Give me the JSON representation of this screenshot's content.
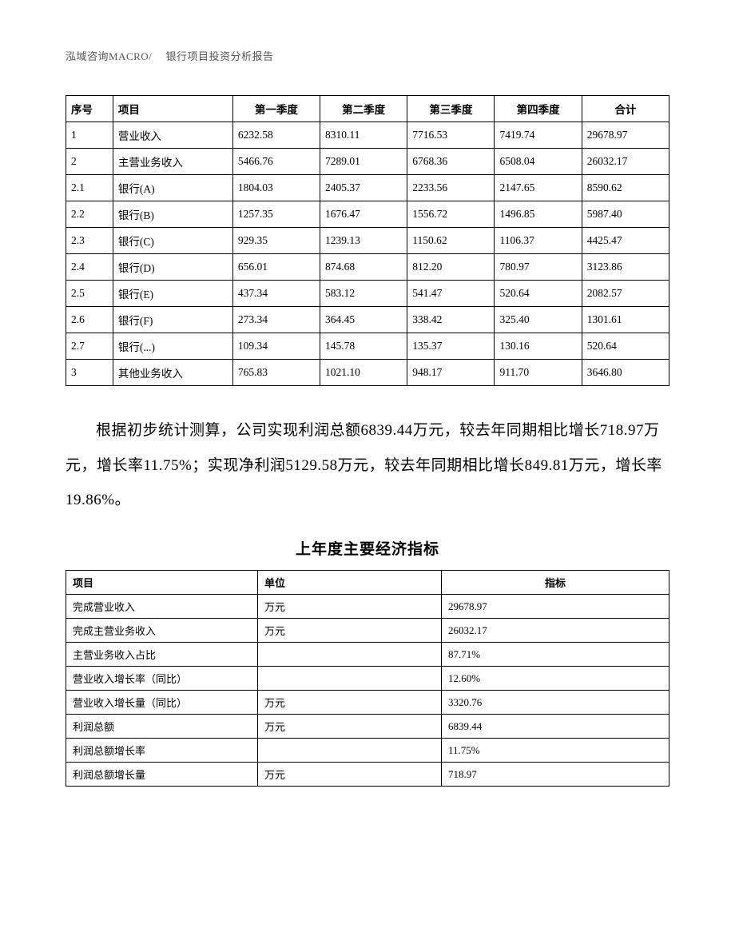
{
  "header": "泓域咨询MACRO/　 银行项目投资分析报告",
  "table1": {
    "headers": {
      "seq": "序号",
      "item": "项目",
      "q1": "第一季度",
      "q2": "第二季度",
      "q3": "第三季度",
      "q4": "第四季度",
      "total": "合计"
    },
    "rows": [
      {
        "seq": "1",
        "item": "营业收入",
        "q1": "6232.58",
        "q2": "8310.11",
        "q3": "7716.53",
        "q4": "7419.74",
        "total": "29678.97"
      },
      {
        "seq": "2",
        "item": "主营业务收入",
        "q1": "5466.76",
        "q2": "7289.01",
        "q3": "6768.36",
        "q4": "6508.04",
        "total": "26032.17"
      },
      {
        "seq": "2.1",
        "item": "银行(A)",
        "q1": "1804.03",
        "q2": "2405.37",
        "q3": "2233.56",
        "q4": "2147.65",
        "total": "8590.62"
      },
      {
        "seq": "2.2",
        "item": "银行(B)",
        "q1": "1257.35",
        "q2": "1676.47",
        "q3": "1556.72",
        "q4": "1496.85",
        "total": "5987.40"
      },
      {
        "seq": "2.3",
        "item": "银行(C)",
        "q1": "929.35",
        "q2": "1239.13",
        "q3": "1150.62",
        "q4": "1106.37",
        "total": "4425.47"
      },
      {
        "seq": "2.4",
        "item": "银行(D)",
        "q1": "656.01",
        "q2": "874.68",
        "q3": "812.20",
        "q4": "780.97",
        "total": "3123.86"
      },
      {
        "seq": "2.5",
        "item": "银行(E)",
        "q1": "437.34",
        "q2": "583.12",
        "q3": "541.47",
        "q4": "520.64",
        "total": "2082.57"
      },
      {
        "seq": "2.6",
        "item": "银行(F)",
        "q1": "273.34",
        "q2": "364.45",
        "q3": "338.42",
        "q4": "325.40",
        "total": "1301.61"
      },
      {
        "seq": "2.7",
        "item": "银行(...)",
        "q1": "109.34",
        "q2": "145.78",
        "q3": "135.37",
        "q4": "130.16",
        "total": "520.64"
      },
      {
        "seq": "3",
        "item": "其他业务收入",
        "q1": "765.83",
        "q2": "1021.10",
        "q3": "948.17",
        "q4": "911.70",
        "total": "3646.80"
      }
    ]
  },
  "paragraph": "根据初步统计测算，公司实现利润总额6839.44万元，较去年同期相比增长718.97万元，增长率11.75%；实现净利润5129.58万元，较去年同期相比增长849.81万元，增长率19.86%。",
  "section_title": "上年度主要经济指标",
  "table2": {
    "headers": {
      "item": "项目",
      "unit": "单位",
      "value": "指标"
    },
    "rows": [
      {
        "item": "完成营业收入",
        "unit": "万元",
        "value": "29678.97"
      },
      {
        "item": "完成主营业务收入",
        "unit": "万元",
        "value": "26032.17"
      },
      {
        "item": "主营业务收入占比",
        "unit": "",
        "value": "87.71%"
      },
      {
        "item": "营业收入增长率（同比）",
        "unit": "",
        "value": "12.60%"
      },
      {
        "item": "营业收入增长量（同比）",
        "unit": "万元",
        "value": "3320.76"
      },
      {
        "item": "利润总额",
        "unit": "万元",
        "value": "6839.44"
      },
      {
        "item": "利润总额增长率",
        "unit": "",
        "value": "11.75%"
      },
      {
        "item": "利润总额增长量",
        "unit": "万元",
        "value": "718.97"
      }
    ]
  }
}
